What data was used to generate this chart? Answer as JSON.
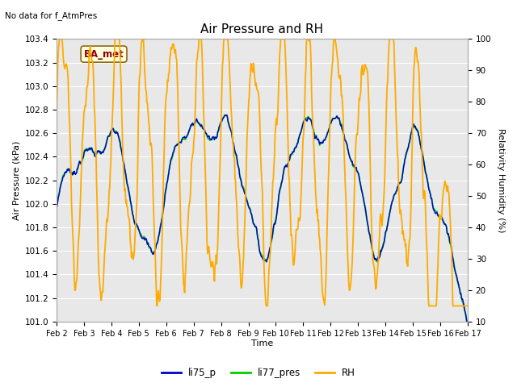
{
  "title": "Air Pressure and RH",
  "subtitle": "No data for f_AtmPres",
  "xlabel": "Time",
  "ylabel_left": "Air Pressure (kPa)",
  "ylabel_right": "Relativity Humidity (%)",
  "ylim_left": [
    101.0,
    103.4
  ],
  "ylim_right": [
    10,
    100
  ],
  "yticks_left": [
    101.0,
    101.2,
    101.4,
    101.6,
    101.8,
    102.0,
    102.2,
    102.4,
    102.6,
    102.8,
    103.0,
    103.2,
    103.4
  ],
  "yticks_right": [
    10,
    20,
    30,
    40,
    50,
    60,
    70,
    80,
    90,
    100
  ],
  "xtick_labels": [
    "Feb 2",
    "Feb 3",
    "Feb 4",
    "Feb 5",
    "Feb 6",
    "Feb 7",
    "Feb 8",
    "Feb 9",
    "Feb 10",
    "Feb 11",
    "Feb 12",
    "Feb 13",
    "Feb 14",
    "Feb 15",
    "Feb 16",
    "Feb 17"
  ],
  "color_li75": "#0000cc",
  "color_li77": "#00cc00",
  "color_rh": "#ffaa00",
  "legend_label_li75": "li75_p",
  "legend_label_li77": "li77_pres",
  "legend_label_rh": "RH",
  "plot_bg_color": "#e8e8e8",
  "ba_met_label": "BA_met",
  "ba_met_text_color": "#8b0000",
  "ba_met_bg_color": "#ffffe0",
  "ba_met_border_color": "#8b6914"
}
